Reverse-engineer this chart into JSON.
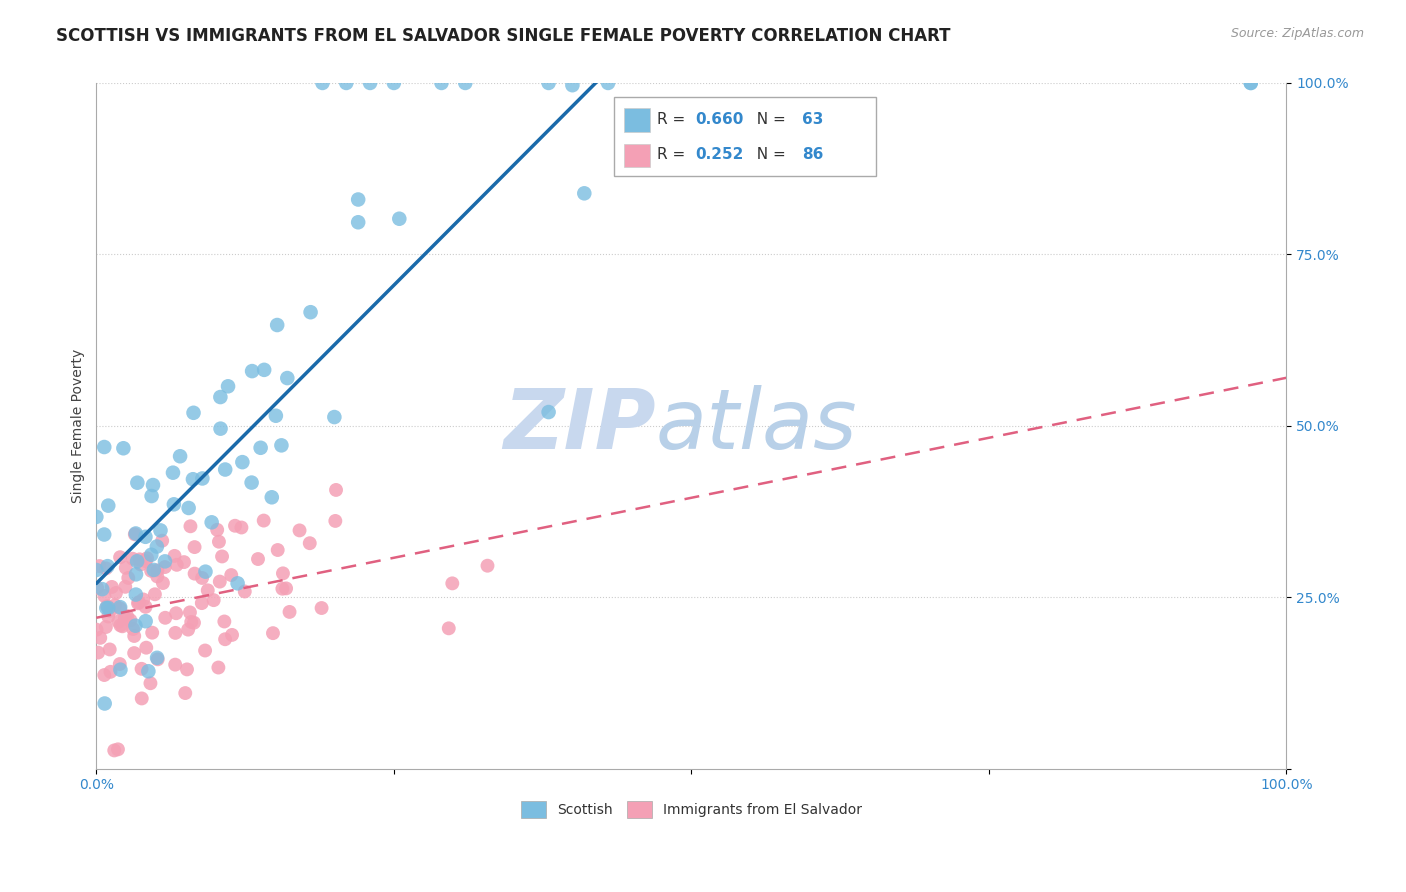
{
  "title": "SCOTTISH VS IMMIGRANTS FROM EL SALVADOR SINGLE FEMALE POVERTY CORRELATION CHART",
  "source": "Source: ZipAtlas.com",
  "ylabel": "Single Female Poverty",
  "legend_line1_prefix": "R = ",
  "legend_line1_r": "0.660",
  "legend_line1_n_label": "  N = ",
  "legend_line1_n": "63",
  "legend_line2_prefix": "R = ",
  "legend_line2_r": "0.252",
  "legend_line2_n_label": "  N = ",
  "legend_line2_n": "86",
  "legend_label1": "Scottish",
  "legend_label2": "Immigrants from El Salvador",
  "scottish_color": "#7bbde0",
  "elsalvador_color": "#f4a0b5",
  "scottish_line_color": "#1a6aaa",
  "elsalvador_line_color": "#e06080",
  "watermark_zip": "ZIP",
  "watermark_atlas": "atlas",
  "watermark_color": "#c8d8ee",
  "background_color": "#ffffff",
  "grid_color": "#cccccc",
  "title_fontsize": 12,
  "axis_label_fontsize": 10,
  "tick_fontsize": 10,
  "legend_fontsize": 11
}
